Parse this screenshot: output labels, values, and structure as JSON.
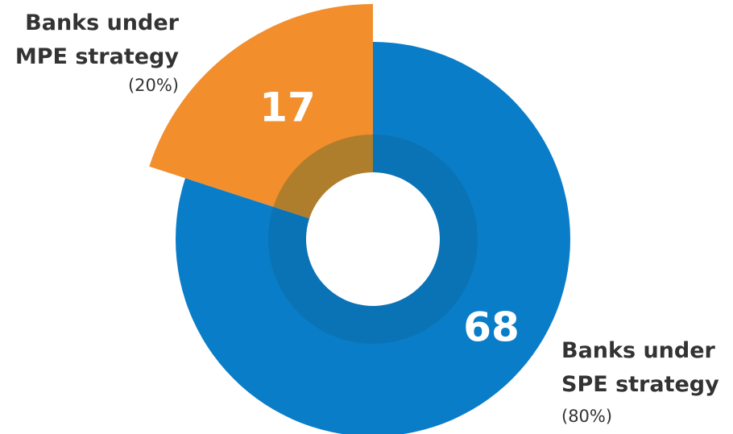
{
  "chart_data": {
    "type": "donut",
    "categories": [
      "Banks under SPE strategy",
      "Banks under MPE strategy"
    ],
    "values": [
      68,
      17
    ],
    "share_labels": [
      "(80%)",
      "(20%)"
    ],
    "colors": [
      "#0a7dc8",
      "#f28e2b"
    ],
    "exploded": [
      false,
      true
    ]
  }
}
